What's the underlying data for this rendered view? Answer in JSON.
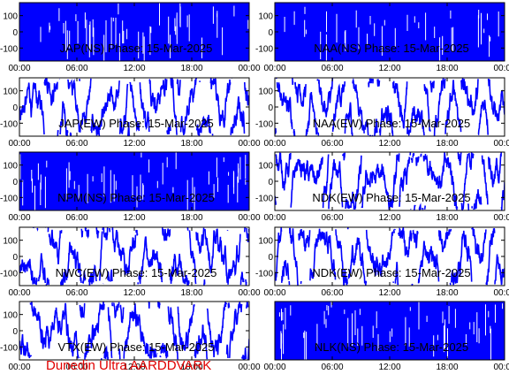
{
  "footer_text": "Dunedin Ultra AARDDVARK",
  "colors": {
    "trace": "#0000ff",
    "axes": "#000000",
    "footer": "#e00000"
  },
  "chart_data": [
    {
      "type": "line",
      "title": "JAP(NS) Phase: 15-Mar-2025",
      "x_ticks": [
        "00:00",
        "06:00",
        "12:00",
        "18:00",
        "00:00"
      ],
      "y_ticks": [
        "100",
        "0",
        "-100"
      ],
      "ylim": [
        -180,
        180
      ],
      "x_range_hours": [
        0,
        24
      ],
      "density": "saturated"
    },
    {
      "type": "line",
      "title": "NAA(NS) Phase: 15-Mar-2025",
      "x_ticks": [
        "00:00",
        "06:00",
        "12:00",
        "18:00",
        "00:00"
      ],
      "y_ticks": [
        "100",
        "0",
        "-100"
      ],
      "ylim": [
        -180,
        180
      ],
      "x_range_hours": [
        0,
        24
      ],
      "density": "saturated"
    },
    {
      "type": "line",
      "title": "JAP(EW) Phase: 15-Mar-2025",
      "x_ticks": [
        "00:00",
        "06:00",
        "12:00",
        "18:00",
        "00:00"
      ],
      "y_ticks": [
        "100",
        "0",
        "-100"
      ],
      "ylim": [
        -180,
        180
      ],
      "x_range_hours": [
        0,
        24
      ],
      "density": "wrapping"
    },
    {
      "type": "line",
      "title": "NAA(EW) Phase: 15-Mar-2025",
      "x_ticks": [
        "00:00",
        "06:00",
        "12:00",
        "18:00",
        "00:00"
      ],
      "y_ticks": [
        "100",
        "0",
        "-100"
      ],
      "ylim": [
        -180,
        180
      ],
      "x_range_hours": [
        0,
        24
      ],
      "density": "wrapping"
    },
    {
      "type": "line",
      "title": "NPM(NS) Phase: 15-Mar-2025",
      "x_ticks": [
        "00:00",
        "06:00",
        "12:00",
        "18:00",
        "00:00"
      ],
      "y_ticks": [
        "100",
        "0",
        "-100"
      ],
      "ylim": [
        -180,
        180
      ],
      "x_range_hours": [
        0,
        24
      ],
      "density": "saturated"
    },
    {
      "type": "line",
      "title": "NDK(EW) Phase: 15-Mar-2025",
      "x_ticks": [
        "00:00",
        "06:00",
        "12:00",
        "18:00",
        "00:00"
      ],
      "y_ticks": [
        "100",
        "0",
        "-100"
      ],
      "ylim": [
        -180,
        180
      ],
      "x_range_hours": [
        0,
        24
      ],
      "density": "wrapping"
    },
    {
      "type": "line",
      "title": "NWC(EW) Phase: 15-Mar-2025",
      "x_ticks": [
        "00:00",
        "06:00",
        "12:00",
        "18:00",
        "00:00"
      ],
      "y_ticks": [
        "100",
        "0",
        "-100"
      ],
      "ylim": [
        -180,
        180
      ],
      "x_range_hours": [
        0,
        24
      ],
      "density": "wrapping"
    },
    {
      "type": "line",
      "title": "NDK(EW) Phase: 15-Mar-2025",
      "x_ticks": [
        "00:00",
        "06:00",
        "12:00",
        "18:00",
        "00:00"
      ],
      "y_ticks": [
        "100",
        "0",
        "-100"
      ],
      "ylim": [
        -180,
        180
      ],
      "x_range_hours": [
        0,
        24
      ],
      "density": "wrapping"
    },
    {
      "type": "line",
      "title": "VTX(EW) Phase: 15-Mar-2025",
      "x_ticks": [
        "00:00",
        "06:00",
        "12:00",
        "18:00",
        "00:00"
      ],
      "y_ticks": [
        "100",
        "0",
        "-100"
      ],
      "ylim": [
        -180,
        180
      ],
      "x_range_hours": [
        0,
        24
      ],
      "density": "wrapping"
    },
    {
      "type": "line",
      "title": "NLK(NS) Phase: 15-Mar-2025",
      "x_ticks": [
        "00:00",
        "06:00",
        "12:00",
        "18:00",
        "00:00"
      ],
      "y_ticks": [],
      "ylim": [
        -180,
        180
      ],
      "x_range_hours": [
        0,
        24
      ],
      "density": "saturated"
    }
  ]
}
